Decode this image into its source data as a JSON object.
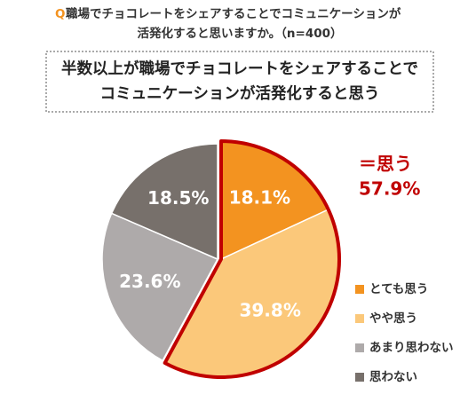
{
  "chart_data": {
    "type": "pie",
    "question_prefix": "Q",
    "title_lines": [
      "職場でチョコレートをシェアすることでコミュニケーションが",
      "活発化すると思いますか。（n=400）"
    ],
    "subtitle_lines": [
      "半数以上が職場でチョコレートをシェアすることで",
      "コミュニケーションが活発化すると思う"
    ],
    "categories": [
      "とても思う",
      "やや思う",
      "あまり思わない",
      "思わない"
    ],
    "values": [
      18.1,
      39.8,
      23.6,
      18.5
    ],
    "value_labels": [
      "18.1%",
      "39.8%",
      "23.6%",
      "18.5%"
    ],
    "colors": [
      "#f39320",
      "#fbc87a",
      "#aeaaaa",
      "#77706b"
    ],
    "annotation": {
      "label": "＝思う",
      "value": 57.9,
      "value_label": "57.9%",
      "color": "#c00000"
    },
    "legend": "right"
  }
}
